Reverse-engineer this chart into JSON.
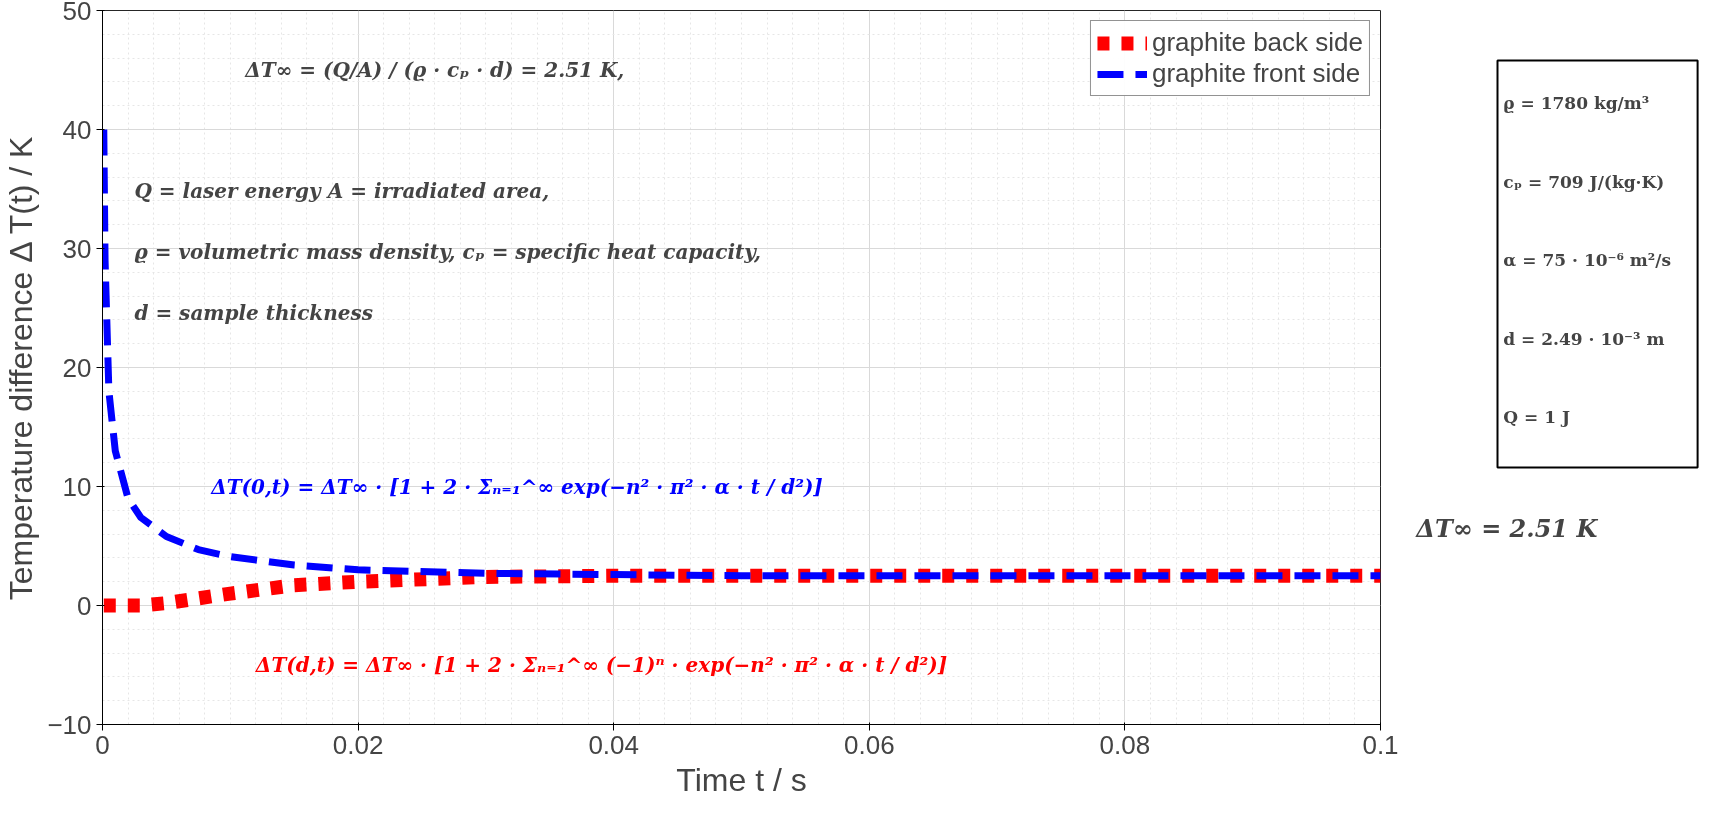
{
  "chart_data": [
    {
      "type": "line",
      "xlabel": "Time t / s",
      "ylabel": "Temperature difference Δ T(t) / K",
      "xlim": [
        0,
        0.1
      ],
      "ylim": [
        -10,
        50
      ],
      "xticks": [
        0,
        0.02,
        0.04,
        0.06,
        0.08,
        0.1
      ],
      "yticks": [
        -10,
        0,
        10,
        20,
        30,
        40,
        50
      ],
      "grid": true,
      "legend": "top right",
      "series": [
        {
          "name": "graphite back side",
          "color": "#ff0000",
          "line_style": "dotted",
          "x": [
            0.0001,
            0.001,
            0.002,
            0.003,
            0.005,
            0.0075,
            0.01,
            0.015,
            0.02,
            0.03,
            0.04,
            0.05,
            0.06,
            0.07,
            0.08,
            0.09,
            0.1
          ],
          "values": [
            0,
            0,
            0,
            0,
            0.2,
            0.6,
            1,
            1.7,
            2,
            2.4,
            2.5,
            2.5,
            2.5,
            2.5,
            2.5,
            2.5,
            2.5
          ]
        },
        {
          "name": "graphite front side",
          "color": "#0000ff",
          "line_style": "dashed",
          "x": [
            0.0001,
            0.0002,
            0.0005,
            0.001,
            0.002,
            0.003,
            0.005,
            0.0075,
            0.01,
            0.015,
            0.02,
            0.03,
            0.04,
            0.05,
            0.06,
            0.07,
            0.08,
            0.09,
            0.1
          ],
          "values": [
            40,
            29,
            18,
            13,
            9,
            7.4,
            5.8,
            4.7,
            4.1,
            3.4,
            3,
            2.7,
            2.6,
            2.5,
            2.5,
            2.5,
            2.5,
            2.5,
            2.5
          ]
        }
      ],
      "annotations": [
        "ΔT∞ = (Q/A) / (ϱ · cₚ · d) = 2.51 K,",
        "Q = laser energy  A = irradiated area,",
        "ϱ = volumetric mass density,       cₚ = specific heat capacity,",
        "d = sample thickness",
        "ΔT(d,t) = ΔT∞ · [1 + 2 · Σₙ₌₁^∞ (−1)ⁿ · exp(−n² · π² · α · t / d²)]",
        "ΔT(0,t) = ΔT∞ · [1 + 2 · Σₙ₌₁^∞ exp(−n² · π² · α · t / d²)]"
      ]
    },
    {
      "type": "other",
      "annotations": [
        "ϱ = 1780 kg/m³",
        "cₚ = 709 J/(kg·K)",
        "α = 75 · 10⁻⁶ m²/s",
        "d = 2.49 · 10⁻³ m",
        "Q = 1  J",
        "ΔT∞ = 2.51 K"
      ]
    }
  ]
}
